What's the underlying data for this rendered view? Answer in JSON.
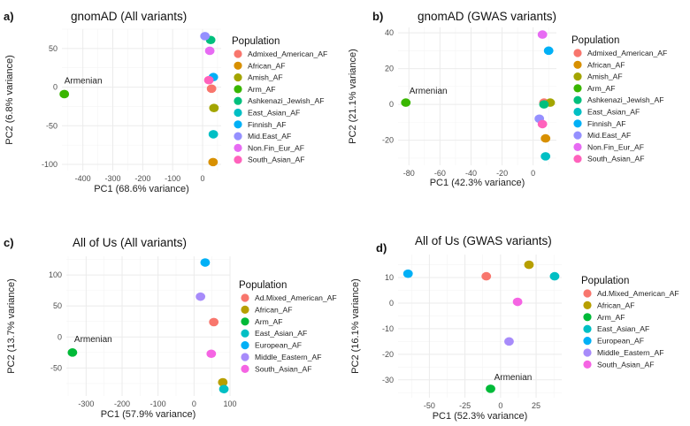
{
  "colors": {
    "Admixed_American_AF": "#F8766D",
    "African_AF": "#D89000",
    "Amish_AF": "#A3A500",
    "Arm_AF": "#39B600",
    "Ashkenazi_Jewish_AF": "#00BF7D",
    "East_Asian_AF": "#00BFC4",
    "Finnish_AF": "#00B0F6",
    "Mid.East_AF": "#9590FF",
    "Non.Fin_Eur_AF": "#E76BF3",
    "South_Asian_AF": "#FF62BC",
    "Ad.Mixed_American_AF": "#F8766D",
    "AoU_African_AF": "#B79F00",
    "AoU_Arm_AF": "#00BA38",
    "AoU_East_Asian_AF": "#00BFC4",
    "European_AF": "#00B0F6",
    "Middle_Eastern_AF": "#A78BFA",
    "AoU_South_Asian_AF": "#F564E3"
  },
  "chart_data": [
    {
      "letter": "a)",
      "title": "gnomAD (All variants)",
      "type": "scatter",
      "xlabel": "PC1 (68.6% variance)",
      "ylabel": "PC2 (6.8% variance)",
      "xlim": [
        -470,
        62
      ],
      "ylim": [
        -108,
        75
      ],
      "xticks": [
        -400,
        -300,
        -200,
        -100,
        0
      ],
      "yticks": [
        -100,
        -50,
        0,
        50
      ],
      "grid": true,
      "legend_title": "Population",
      "legend_position": "right",
      "annotation": "Armenian",
      "points": [
        {
          "label": "Admixed_American_AF",
          "color_key": "Admixed_American_AF",
          "x": 30,
          "y": -2
        },
        {
          "label": "African_AF",
          "color_key": "African_AF",
          "x": 35,
          "y": -97
        },
        {
          "label": "Amish_AF",
          "color_key": "Amish_AF",
          "x": 38,
          "y": -27
        },
        {
          "label": "Arm_AF",
          "color_key": "Arm_AF",
          "x": -462,
          "y": -9
        },
        {
          "label": "Ashkenazi_Jewish_AF",
          "color_key": "Ashkenazi_Jewish_AF",
          "x": 27,
          "y": 61
        },
        {
          "label": "East_Asian_AF",
          "color_key": "East_Asian_AF",
          "x": 36,
          "y": -61
        },
        {
          "label": "Finnish_AF",
          "color_key": "Finnish_AF",
          "x": 36,
          "y": 13
        },
        {
          "label": "Mid.East_AF",
          "color_key": "Mid.East_AF",
          "x": 8,
          "y": 66
        },
        {
          "label": "Non.Fin_Eur_AF",
          "color_key": "Non.Fin_Eur_AF",
          "x": 24,
          "y": 47
        },
        {
          "label": "South_Asian_AF",
          "color_key": "South_Asian_AF",
          "x": 21,
          "y": 9
        }
      ]
    },
    {
      "letter": "b)",
      "title": "gnomAD (GWAS variants)",
      "type": "scatter",
      "xlabel": "PC1 (42.3% variance)",
      "ylabel": "PC2 (21.1% variance)",
      "xlim": [
        -87,
        15
      ],
      "ylim": [
        -34,
        43
      ],
      "xticks": [
        -80,
        -60,
        -40,
        -20,
        0
      ],
      "yticks": [
        -20,
        0,
        20,
        40
      ],
      "grid": true,
      "legend_title": "Population",
      "legend_position": "right",
      "annotation": "Armenian",
      "points": [
        {
          "label": "Admixed_American_AF",
          "color_key": "Admixed_American_AF",
          "x": 7,
          "y": 1
        },
        {
          "label": "African_AF",
          "color_key": "African_AF",
          "x": 8,
          "y": -19
        },
        {
          "label": "Amish_AF",
          "color_key": "Amish_AF",
          "x": 11,
          "y": 1
        },
        {
          "label": "Arm_AF",
          "color_key": "Arm_AF",
          "x": -82,
          "y": 1
        },
        {
          "label": "Ashkenazi_Jewish_AF",
          "color_key": "Ashkenazi_Jewish_AF",
          "x": 7,
          "y": 0
        },
        {
          "label": "East_Asian_AF",
          "color_key": "East_Asian_AF",
          "x": 8,
          "y": -29
        },
        {
          "label": "Finnish_AF",
          "color_key": "Finnish_AF",
          "x": 10,
          "y": 30
        },
        {
          "label": "Mid.East_AF",
          "color_key": "Mid.East_AF",
          "x": 4,
          "y": -8
        },
        {
          "label": "Non.Fin_Eur_AF",
          "color_key": "Non.Fin_Eur_AF",
          "x": 6,
          "y": 39
        },
        {
          "label": "South_Asian_AF",
          "color_key": "South_Asian_AF",
          "x": 6,
          "y": -11
        }
      ]
    },
    {
      "letter": "c)",
      "title": "All of Us (All variants)",
      "type": "scatter",
      "xlabel": "PC1 (57.9% variance)",
      "ylabel": "PC2 (13.7% variance)",
      "xlim": [
        -355,
        100
      ],
      "ylim": [
        -95,
        130
      ],
      "xticks": [
        -300,
        -200,
        -100,
        0,
        100
      ],
      "yticks": [
        -50,
        0,
        50,
        100
      ],
      "grid": true,
      "legend_title": "Population",
      "legend_position": "right",
      "annotation": "Armenian",
      "points": [
        {
          "label": "Ad.Mixed_American_AF",
          "color_key": "Ad.Mixed_American_AF",
          "x": 55,
          "y": 24
        },
        {
          "label": "African_AF",
          "color_key": "AoU_African_AF",
          "x": 80,
          "y": -73
        },
        {
          "label": "Arm_AF",
          "color_key": "AoU_Arm_AF",
          "x": -338,
          "y": -25
        },
        {
          "label": "East_Asian_AF",
          "color_key": "AoU_East_Asian_AF",
          "x": 83,
          "y": -84
        },
        {
          "label": "European_AF",
          "color_key": "European_AF",
          "x": 31,
          "y": 120
        },
        {
          "label": "Middle_Eastern_AF",
          "color_key": "Middle_Eastern_AF",
          "x": 18,
          "y": 65
        },
        {
          "label": "South_Asian_AF",
          "color_key": "AoU_South_Asian_AF",
          "x": 48,
          "y": -27
        }
      ]
    },
    {
      "letter": "d)",
      "title": "All of Us (GWAS variants)",
      "type": "scatter",
      "xlabel": "PC1 (52.3% variance)",
      "ylabel": "PC2 (16.1% variance)",
      "xlim": [
        -72,
        43
      ],
      "ylim": [
        -37,
        19
      ],
      "xticks": [
        -50,
        -25,
        0,
        25
      ],
      "yticks": [
        -30,
        -20,
        -10,
        0,
        10
      ],
      "grid": true,
      "legend_title": "Population",
      "legend_position": "right",
      "annotation": "Armenian",
      "points": [
        {
          "label": "Ad.Mixed_American_AF",
          "color_key": "Ad.Mixed_American_AF",
          "x": -10,
          "y": 10.5
        },
        {
          "label": "African_AF",
          "color_key": "AoU_African_AF",
          "x": 20,
          "y": 15
        },
        {
          "label": "Arm_AF",
          "color_key": "AoU_Arm_AF",
          "x": -7,
          "y": -33.5
        },
        {
          "label": "East_Asian_AF",
          "color_key": "AoU_East_Asian_AF",
          "x": 38,
          "y": 10.5
        },
        {
          "label": "European_AF",
          "color_key": "European_AF",
          "x": -65,
          "y": 11.5
        },
        {
          "label": "Middle_Eastern_AF",
          "color_key": "Middle_Eastern_AF",
          "x": 6,
          "y": -15
        },
        {
          "label": "South_Asian_AF",
          "color_key": "AoU_South_Asian_AF",
          "x": 12,
          "y": 0.5
        }
      ]
    }
  ]
}
